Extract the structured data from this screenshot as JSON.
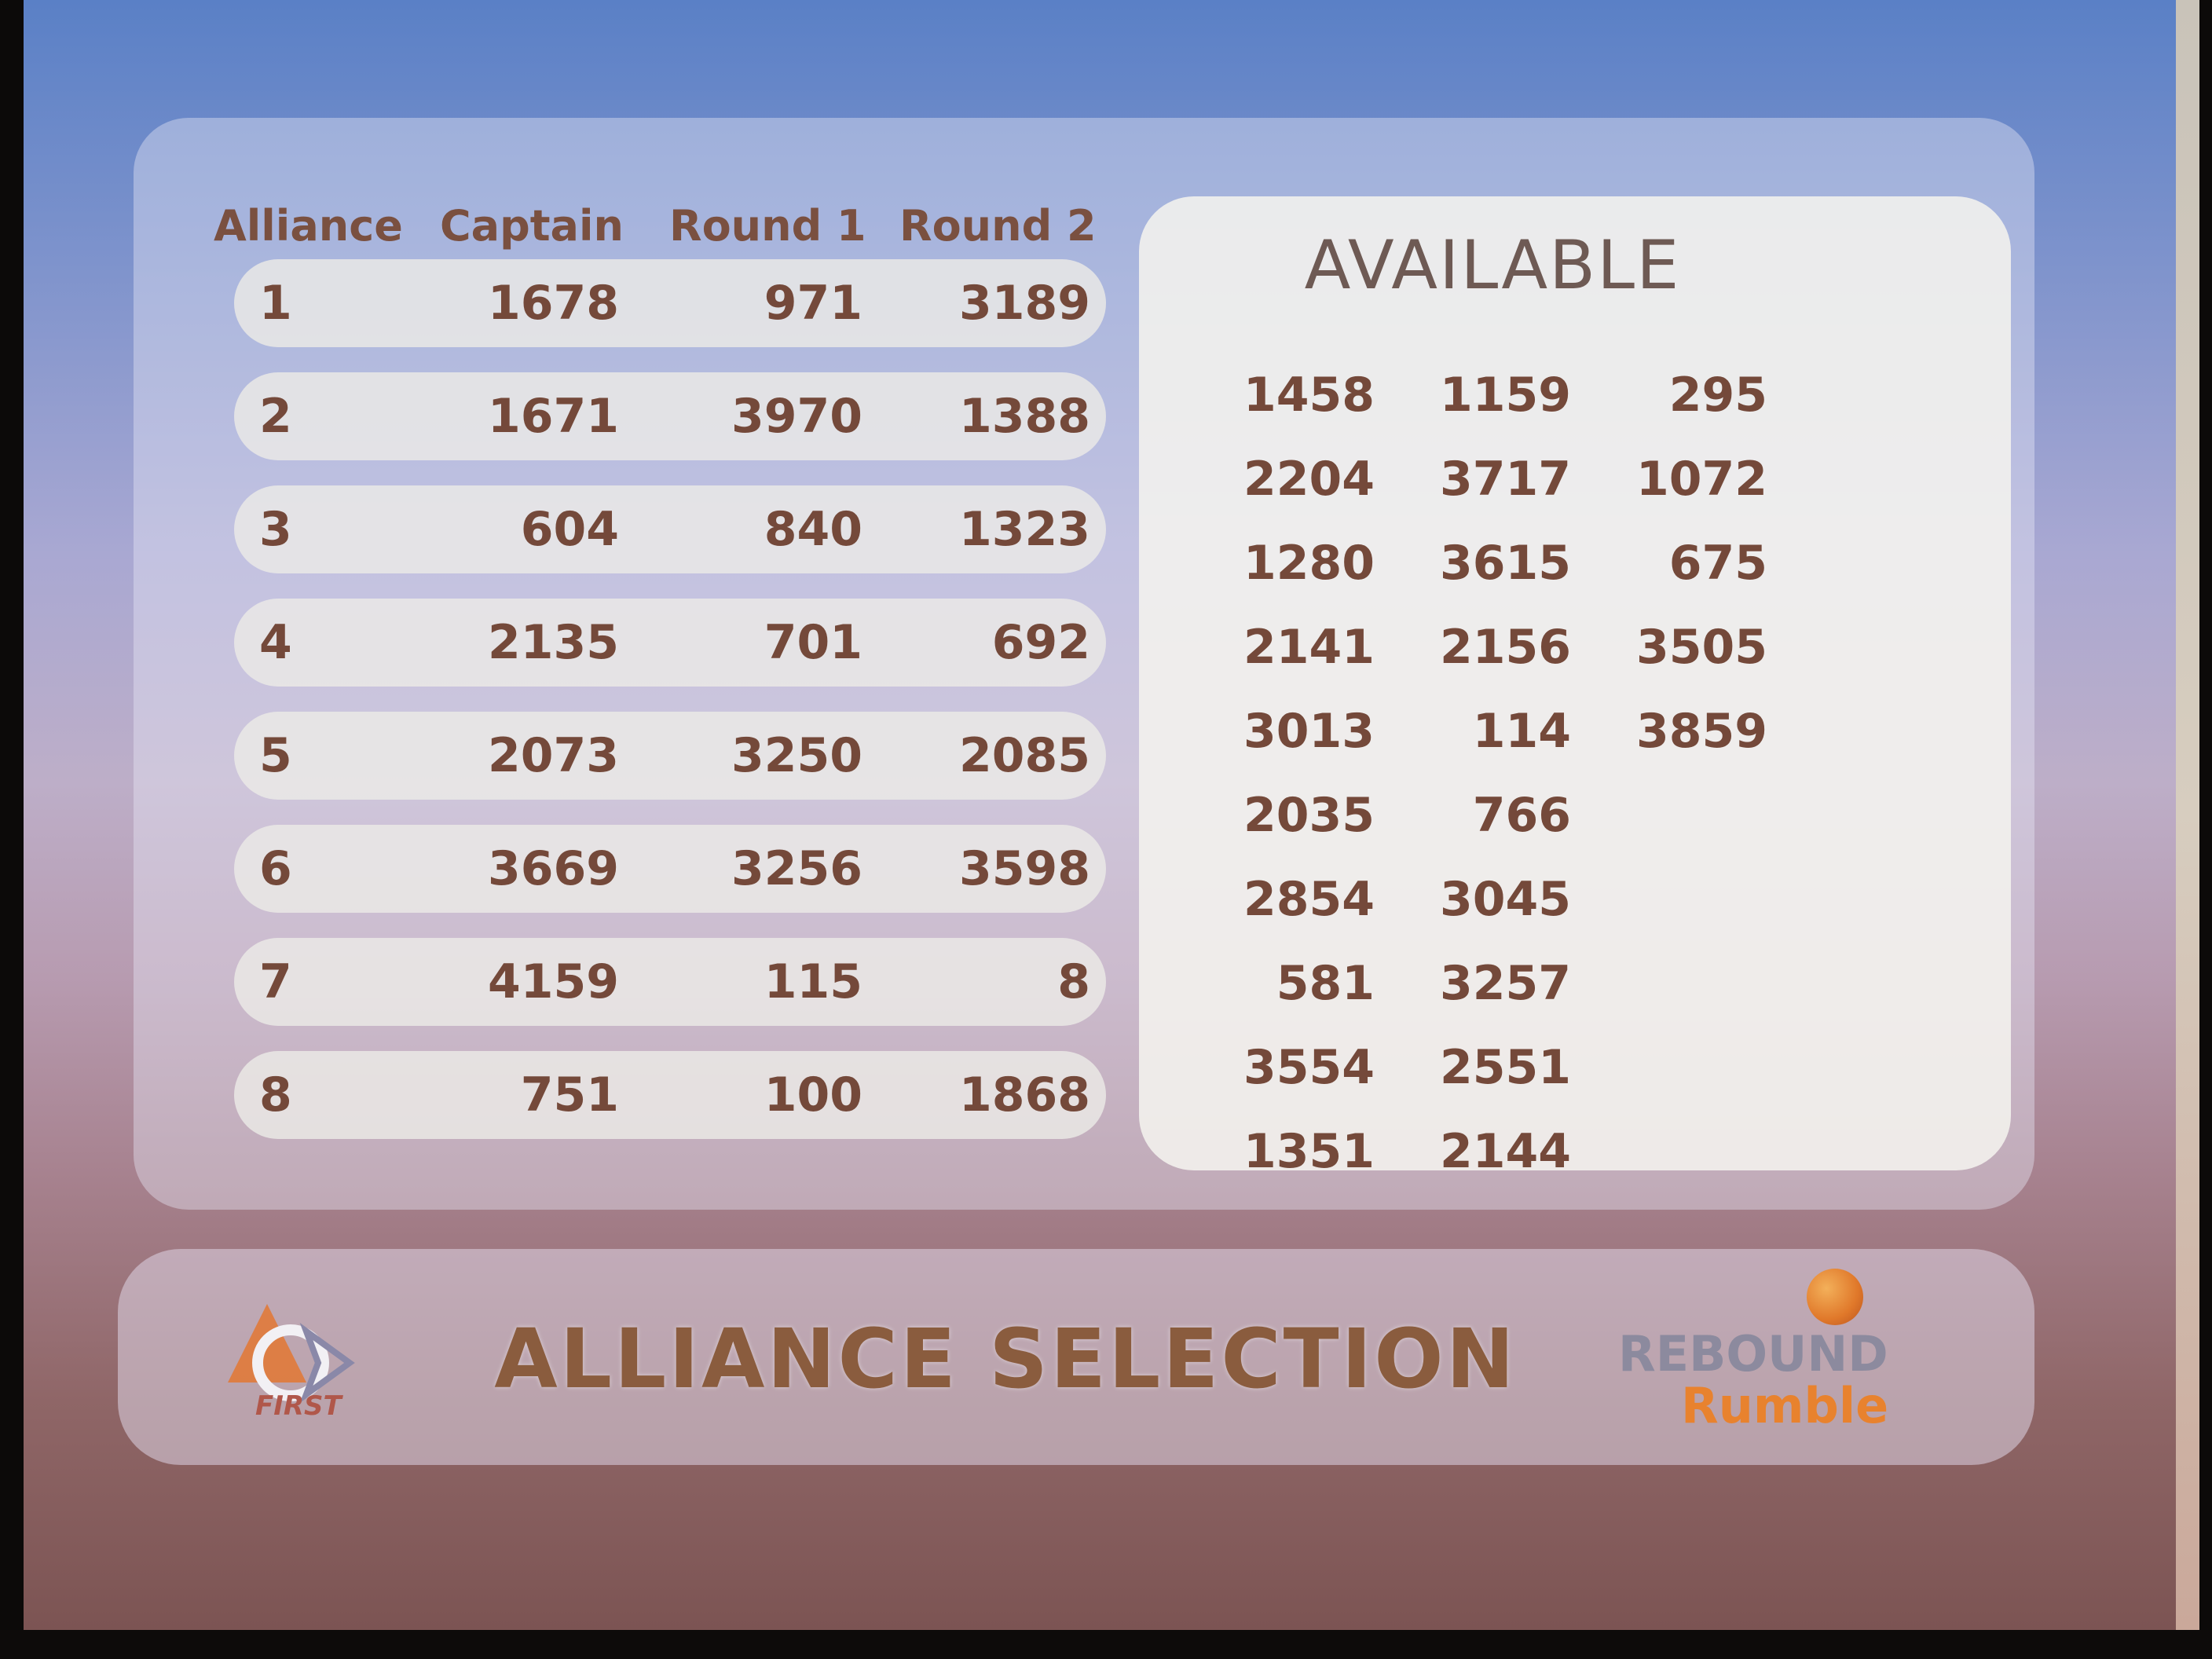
{
  "table": {
    "headers": {
      "alliance": "Alliance",
      "captain": "Captain",
      "round1": "Round 1",
      "round2": "Round 2"
    },
    "rows": [
      {
        "alliance": "1",
        "captain": "1678",
        "round1": "971",
        "round2": "3189"
      },
      {
        "alliance": "2",
        "captain": "1671",
        "round1": "3970",
        "round2": "1388"
      },
      {
        "alliance": "3",
        "captain": "604",
        "round1": "840",
        "round2": "1323"
      },
      {
        "alliance": "4",
        "captain": "2135",
        "round1": "701",
        "round2": "692"
      },
      {
        "alliance": "5",
        "captain": "2073",
        "round1": "3250",
        "round2": "2085"
      },
      {
        "alliance": "6",
        "captain": "3669",
        "round1": "3256",
        "round2": "3598"
      },
      {
        "alliance": "7",
        "captain": "4159",
        "round1": "115",
        "round2": "8"
      },
      {
        "alliance": "8",
        "captain": "751",
        "round1": "100",
        "round2": "1868"
      }
    ]
  },
  "available": {
    "title": "AVAILABLE",
    "teams": [
      [
        "1458",
        "1159",
        "295"
      ],
      [
        "2204",
        "3717",
        "1072"
      ],
      [
        "1280",
        "3615",
        "675"
      ],
      [
        "2141",
        "2156",
        "3505"
      ],
      [
        "3013",
        "114",
        "3859"
      ],
      [
        "2035",
        "766",
        ""
      ],
      [
        "2854",
        "3045",
        ""
      ],
      [
        "581",
        "3257",
        ""
      ],
      [
        "3554",
        "2551",
        ""
      ],
      [
        "1351",
        "2144",
        ""
      ]
    ]
  },
  "footer": {
    "title": "ALLIANCE SELECTION",
    "first_logo_text": "FIRST",
    "game_logo_line1": "REBOUND",
    "game_logo_line2": "Rumble"
  },
  "colors": {
    "text_brown": "#74493a",
    "footer_orange": "#e8822e"
  }
}
